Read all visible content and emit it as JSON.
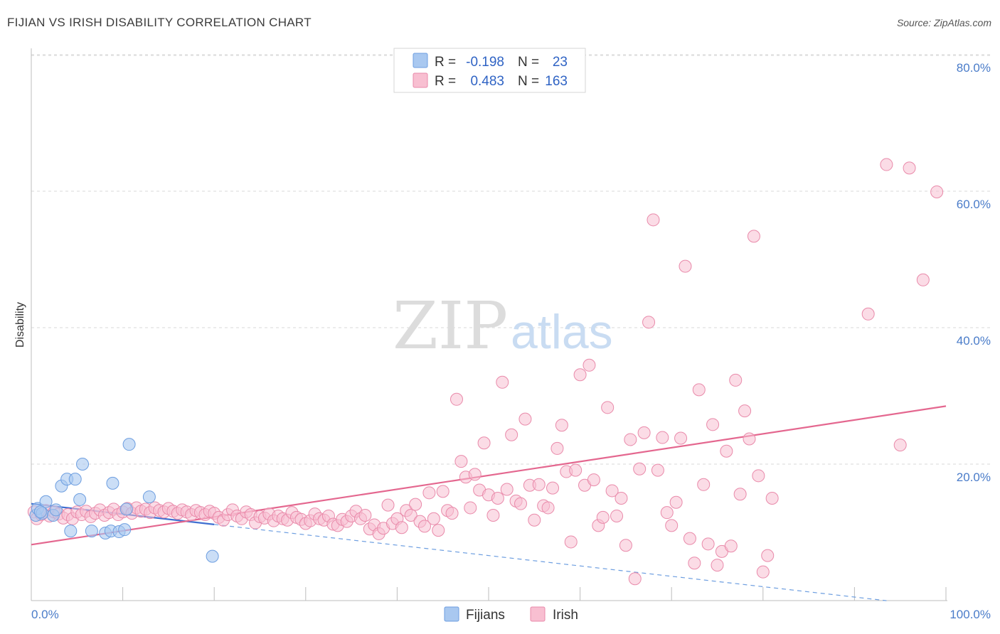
{
  "header": {
    "title": "FIJIAN VS IRISH DISABILITY CORRELATION CHART",
    "source": "Source: ZipAtlas.com"
  },
  "watermark": {
    "zip": "ZIP",
    "atlas": "atlas"
  },
  "legend": {
    "rows": [
      {
        "r_label": "R =",
        "r_value": "-0.198",
        "n_label": "N =",
        "n_value": "23",
        "color": "#a9c8f0",
        "stroke": "#6d9ee0"
      },
      {
        "r_label": "R =",
        "r_value": "0.483",
        "n_label": "N =",
        "n_value": "163",
        "color": "#f8bfd1",
        "stroke": "#e98aaa"
      }
    ]
  },
  "bottom_legend": [
    {
      "label": "Fijians",
      "color": "#a9c8f0",
      "stroke": "#6d9ee0"
    },
    {
      "label": "Irish",
      "color": "#f8bfd1",
      "stroke": "#e98aaa"
    }
  ],
  "chart_data": {
    "type": "scatter",
    "title": "FIJIAN VS IRISH DISABILITY CORRELATION CHART",
    "xlabel": "",
    "ylabel": "Disability",
    "xlim": [
      0,
      100
    ],
    "ylim": [
      0,
      82
    ],
    "x_tick_labels": [
      "0.0%",
      "100.0%"
    ],
    "y_ticks": [
      20,
      40,
      60,
      80
    ],
    "y_tick_labels": [
      "20.0%",
      "40.0%",
      "60.0%",
      "80.0%"
    ],
    "grid": true,
    "series": [
      {
        "name": "Fijians",
        "color": "#a9c8f0",
        "stroke": "#6d9ee0",
        "points": [
          [
            0.5,
            12.5
          ],
          [
            0.7,
            13.5
          ],
          [
            1.2,
            12.8
          ],
          [
            1.6,
            14.5
          ],
          [
            2.4,
            12.5
          ],
          [
            2.7,
            13.3
          ],
          [
            3.3,
            16.8
          ],
          [
            3.9,
            17.8
          ],
          [
            4.3,
            10.2
          ],
          [
            4.8,
            17.8
          ],
          [
            5.3,
            14.8
          ],
          [
            5.6,
            20.0
          ],
          [
            6.6,
            10.2
          ],
          [
            8.1,
            9.9
          ],
          [
            8.9,
            17.2
          ],
          [
            8.7,
            10.2
          ],
          [
            9.6,
            10.1
          ],
          [
            10.2,
            10.4
          ],
          [
            10.4,
            13.4
          ],
          [
            10.7,
            22.9
          ],
          [
            12.9,
            15.2
          ],
          [
            19.8,
            6.5
          ],
          [
            1.0,
            13.0
          ]
        ],
        "trend": {
          "x_start": 0,
          "y_start": 14.2,
          "x_end": 100,
          "y_end": -1.0,
          "solid_until_x": 20
        }
      },
      {
        "name": "Irish",
        "color": "#f8bfd1",
        "stroke": "#e98aaa",
        "points": [
          [
            0.3,
            13.0
          ],
          [
            0.6,
            12.0
          ],
          [
            1.1,
            12.6
          ],
          [
            1.6,
            13.2
          ],
          [
            2.0,
            12.4
          ],
          [
            2.5,
            13.0
          ],
          [
            3.0,
            12.7
          ],
          [
            3.5,
            12.1
          ],
          [
            4.0,
            12.6
          ],
          [
            4.5,
            12.0
          ],
          [
            5.0,
            13.0
          ],
          [
            5.5,
            12.6
          ],
          [
            6.0,
            13.1
          ],
          [
            6.5,
            12.3
          ],
          [
            7.0,
            12.8
          ],
          [
            7.5,
            13.3
          ],
          [
            8.0,
            12.5
          ],
          [
            8.5,
            12.9
          ],
          [
            9.0,
            13.4
          ],
          [
            9.5,
            12.6
          ],
          [
            10.0,
            13.0
          ],
          [
            10.5,
            13.5
          ],
          [
            11.0,
            12.8
          ],
          [
            11.5,
            13.6
          ],
          [
            12.0,
            13.1
          ],
          [
            12.5,
            13.4
          ],
          [
            13.0,
            12.9
          ],
          [
            13.5,
            13.6
          ],
          [
            14.0,
            13.2
          ],
          [
            14.5,
            13.0
          ],
          [
            15.0,
            13.5
          ],
          [
            15.5,
            13.1
          ],
          [
            16.0,
            12.8
          ],
          [
            16.5,
            13.3
          ],
          [
            17.0,
            13.0
          ],
          [
            17.5,
            12.6
          ],
          [
            18.0,
            13.2
          ],
          [
            18.5,
            12.9
          ],
          [
            19.0,
            12.6
          ],
          [
            19.5,
            13.1
          ],
          [
            20.0,
            12.8
          ],
          [
            20.5,
            12.2
          ],
          [
            21.0,
            11.8
          ],
          [
            21.5,
            12.6
          ],
          [
            22.0,
            13.3
          ],
          [
            22.5,
            12.4
          ],
          [
            23.0,
            12.0
          ],
          [
            23.5,
            13.0
          ],
          [
            24.0,
            12.6
          ],
          [
            24.5,
            11.4
          ],
          [
            25.0,
            12.3
          ],
          [
            25.5,
            12.1
          ],
          [
            26.0,
            12.7
          ],
          [
            26.5,
            11.7
          ],
          [
            27.0,
            12.4
          ],
          [
            27.5,
            12.0
          ],
          [
            28.0,
            11.8
          ],
          [
            28.5,
            12.9
          ],
          [
            29.0,
            12.2
          ],
          [
            29.5,
            11.9
          ],
          [
            30.0,
            11.3
          ],
          [
            30.5,
            11.7
          ],
          [
            31.0,
            12.7
          ],
          [
            31.5,
            12.0
          ],
          [
            32.0,
            11.8
          ],
          [
            32.5,
            12.4
          ],
          [
            33.0,
            11.2
          ],
          [
            33.5,
            11.0
          ],
          [
            34.0,
            11.9
          ],
          [
            34.5,
            11.6
          ],
          [
            35.0,
            12.4
          ],
          [
            35.5,
            13.1
          ],
          [
            36.0,
            12.0
          ],
          [
            36.5,
            12.5
          ],
          [
            37.0,
            10.5
          ],
          [
            37.5,
            11.1
          ],
          [
            38.0,
            9.8
          ],
          [
            38.5,
            10.6
          ],
          [
            39.0,
            14.0
          ],
          [
            39.5,
            11.3
          ],
          [
            40.0,
            12.0
          ],
          [
            40.5,
            10.7
          ],
          [
            41.0,
            13.2
          ],
          [
            41.5,
            12.5
          ],
          [
            42.0,
            14.1
          ],
          [
            42.5,
            11.6
          ],
          [
            43.0,
            10.9
          ],
          [
            43.5,
            15.8
          ],
          [
            44.0,
            12.0
          ],
          [
            44.5,
            10.3
          ],
          [
            45.0,
            16.0
          ],
          [
            45.5,
            13.2
          ],
          [
            46.0,
            12.8
          ],
          [
            46.5,
            29.5
          ],
          [
            47.0,
            20.4
          ],
          [
            47.5,
            18.1
          ],
          [
            48.0,
            13.6
          ],
          [
            48.5,
            18.5
          ],
          [
            49.0,
            16.2
          ],
          [
            49.5,
            23.1
          ],
          [
            50.0,
            15.5
          ],
          [
            50.5,
            12.5
          ],
          [
            51.0,
            15.0
          ],
          [
            51.5,
            32.0
          ],
          [
            52.0,
            16.3
          ],
          [
            52.5,
            24.3
          ],
          [
            53.0,
            14.6
          ],
          [
            53.5,
            14.2
          ],
          [
            54.0,
            26.6
          ],
          [
            54.5,
            16.9
          ],
          [
            55.0,
            11.8
          ],
          [
            55.5,
            17.0
          ],
          [
            56.0,
            13.9
          ],
          [
            56.5,
            13.6
          ],
          [
            57.0,
            16.5
          ],
          [
            57.5,
            22.3
          ],
          [
            58.0,
            25.7
          ],
          [
            58.5,
            18.9
          ],
          [
            59.0,
            8.6
          ],
          [
            59.5,
            19.1
          ],
          [
            60.0,
            33.1
          ],
          [
            60.5,
            16.9
          ],
          [
            61.0,
            34.5
          ],
          [
            61.5,
            17.7
          ],
          [
            62.0,
            11.0
          ],
          [
            62.5,
            12.2
          ],
          [
            63.0,
            28.3
          ],
          [
            63.5,
            16.1
          ],
          [
            64.0,
            12.4
          ],
          [
            64.5,
            15.0
          ],
          [
            65.0,
            8.1
          ],
          [
            65.5,
            23.6
          ],
          [
            66.0,
            3.2
          ],
          [
            66.5,
            19.3
          ],
          [
            67.0,
            24.6
          ],
          [
            67.5,
            40.8
          ],
          [
            68.0,
            55.8
          ],
          [
            68.5,
            19.1
          ],
          [
            69.0,
            23.9
          ],
          [
            69.5,
            12.9
          ],
          [
            70.0,
            11.0
          ],
          [
            70.5,
            14.4
          ],
          [
            71.0,
            23.8
          ],
          [
            71.5,
            49.0
          ],
          [
            72.0,
            9.1
          ],
          [
            72.5,
            5.5
          ],
          [
            73.0,
            30.9
          ],
          [
            73.5,
            17.0
          ],
          [
            74.0,
            8.3
          ],
          [
            74.5,
            25.8
          ],
          [
            75.0,
            5.2
          ],
          [
            75.5,
            7.2
          ],
          [
            76.0,
            21.9
          ],
          [
            76.5,
            8.0
          ],
          [
            77.0,
            32.3
          ],
          [
            77.5,
            15.6
          ],
          [
            78.0,
            27.8
          ],
          [
            78.5,
            23.7
          ],
          [
            79.0,
            53.4
          ],
          [
            79.5,
            18.3
          ],
          [
            80.0,
            4.2
          ],
          [
            80.5,
            6.6
          ],
          [
            81.0,
            15.0
          ],
          [
            91.5,
            42.0
          ],
          [
            93.5,
            63.9
          ],
          [
            95.0,
            22.8
          ],
          [
            96.0,
            63.4
          ],
          [
            97.5,
            47.0
          ],
          [
            99.0,
            59.9
          ]
        ],
        "trend": {
          "x_start": 0,
          "y_start": 8.2,
          "x_end": 100,
          "y_end": 28.5
        }
      }
    ]
  }
}
